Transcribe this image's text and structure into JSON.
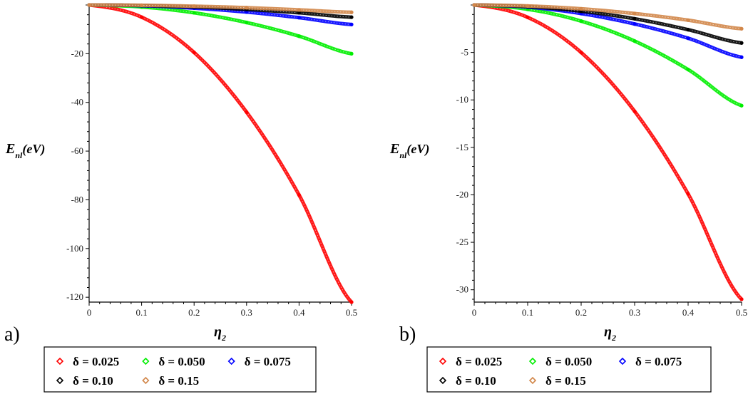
{
  "chart_data": [
    {
      "type": "line",
      "panel_label": "a)",
      "xlabel": {
        "main": "η",
        "sub": "2"
      },
      "ylabel": {
        "main": "E",
        "sub": "nl",
        "tail": "(eV)"
      },
      "xlim": [
        0,
        0.5
      ],
      "ylim": [
        -122,
        0
      ],
      "x_ticks": [
        0,
        0.1,
        0.2,
        0.3,
        0.4,
        0.5
      ],
      "x_tick_labels": [
        "0",
        "0.1",
        "0.2",
        "0.3",
        "0.4",
        "0.5"
      ],
      "y_ticks": [
        -20,
        -40,
        -60,
        -80,
        -100,
        -120
      ],
      "y_tick_labels": [
        "-20",
        "-40",
        "-60",
        "-80",
        "-100",
        "-120"
      ],
      "grid": false,
      "series": [
        {
          "name": "δ = 0.025",
          "color": "#ff0000",
          "x": [
            0,
            0.1,
            0.2,
            0.3,
            0.4,
            0.5
          ],
          "values": [
            0,
            -5,
            -19.5,
            -44,
            -78,
            -122
          ]
        },
        {
          "name": "δ = 0.050",
          "color": "#00ee00",
          "x": [
            0,
            0.1,
            0.2,
            0.3,
            0.4,
            0.5
          ],
          "values": [
            0,
            -0.8,
            -3.2,
            -7.2,
            -12.8,
            -20
          ]
        },
        {
          "name": "δ = 0.075",
          "color": "#0000ff",
          "x": [
            0,
            0.1,
            0.2,
            0.3,
            0.4,
            0.5
          ],
          "values": [
            0,
            -0.3,
            -1.3,
            -2.9,
            -5.2,
            -8
          ]
        },
        {
          "name": "δ = 0.10",
          "color": "#000000",
          "x": [
            0,
            0.1,
            0.2,
            0.3,
            0.4,
            0.5
          ],
          "values": [
            0,
            -0.2,
            -0.8,
            -1.8,
            -3.2,
            -5
          ]
        },
        {
          "name": "δ = 0.15",
          "color": "#d2874a",
          "x": [
            0,
            0.1,
            0.2,
            0.3,
            0.4,
            0.5
          ],
          "values": [
            0,
            -0.12,
            -0.5,
            -1.1,
            -2,
            -3
          ]
        }
      ]
    },
    {
      "type": "line",
      "panel_label": "b)",
      "xlabel": {
        "main": "η",
        "sub": "2"
      },
      "ylabel": {
        "main": "E",
        "sub": "nl",
        "tail": "(eV)"
      },
      "xlim": [
        0,
        0.5
      ],
      "ylim": [
        -31.3,
        0
      ],
      "x_ticks": [
        0,
        0.1,
        0.2,
        0.3,
        0.4,
        0.5
      ],
      "x_tick_labels": [
        "0",
        "0.1",
        "0.2",
        "0.3",
        "0.4",
        "0.5"
      ],
      "y_ticks": [
        -5,
        -10,
        -15,
        -20,
        -25,
        -30
      ],
      "y_tick_labels": [
        "-5",
        "-10",
        "-15",
        "-20",
        "-25",
        "-30"
      ],
      "grid": false,
      "series": [
        {
          "name": "δ = 0.025",
          "color": "#ff0000",
          "x": [
            0,
            0.1,
            0.2,
            0.3,
            0.4,
            0.5
          ],
          "values": [
            0,
            -1.3,
            -5,
            -11.2,
            -19.9,
            -31
          ]
        },
        {
          "name": "δ = 0.050",
          "color": "#00ee00",
          "x": [
            0,
            0.1,
            0.2,
            0.3,
            0.4,
            0.5
          ],
          "values": [
            0,
            -0.45,
            -1.7,
            -3.8,
            -6.8,
            -10.6
          ]
        },
        {
          "name": "δ = 0.075",
          "color": "#0000ff",
          "x": [
            0,
            0.1,
            0.2,
            0.3,
            0.4,
            0.5
          ],
          "values": [
            0,
            -0.22,
            -0.9,
            -2,
            -3.5,
            -5.5
          ]
        },
        {
          "name": "δ = 0.10",
          "color": "#000000",
          "x": [
            0,
            0.1,
            0.2,
            0.3,
            0.4,
            0.5
          ],
          "values": [
            0,
            -0.16,
            -0.65,
            -1.45,
            -2.6,
            -4
          ]
        },
        {
          "name": "δ = 0.15",
          "color": "#d2874a",
          "x": [
            0,
            0.1,
            0.2,
            0.3,
            0.4,
            0.5
          ],
          "values": [
            0,
            -0.1,
            -0.4,
            -0.9,
            -1.6,
            -2.5
          ]
        }
      ]
    }
  ]
}
